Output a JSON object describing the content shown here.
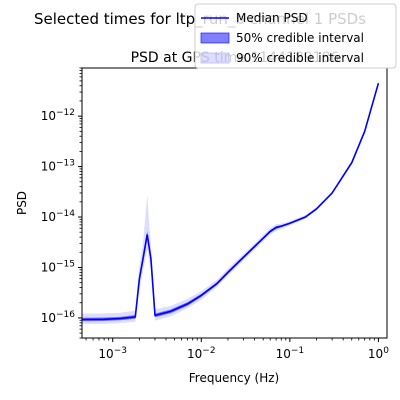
{
  "figure": {
    "suptitle": "Selected times for ltp_run_b channel 1 PSDs"
  },
  "chart_data": {
    "type": "line",
    "title": "PSD at GPS time 1144189186",
    "xlabel": "Frequency (Hz)",
    "ylabel": "PSD",
    "xscale": "log",
    "yscale": "log",
    "xlim": [
      0.00045,
      1.25
    ],
    "ylim": [
      4e-17,
      9e-12
    ],
    "xticks": [
      {
        "value": 0.001,
        "base": "10",
        "exp": "−3"
      },
      {
        "value": 0.01,
        "base": "10",
        "exp": "−2"
      },
      {
        "value": 0.1,
        "base": "10",
        "exp": "−1"
      },
      {
        "value": 1,
        "base": "10",
        "exp": "0"
      }
    ],
    "yticks": [
      {
        "value": 1e-16,
        "base": "10",
        "exp": "−16"
      },
      {
        "value": 1e-15,
        "base": "10",
        "exp": "−15"
      },
      {
        "value": 1e-14,
        "base": "10",
        "exp": "−14"
      },
      {
        "value": 1e-13,
        "base": "10",
        "exp": "−13"
      },
      {
        "value": 1e-12,
        "base": "10",
        "exp": "−12"
      }
    ],
    "legend": {
      "placement": "top-right",
      "entries": [
        "Median PSD",
        "50% credible interval",
        "90% credible interval"
      ]
    },
    "colors": {
      "median": "#0000ff",
      "ci50": "#0000ff",
      "ci90": "#b3b3ff"
    },
    "series": [
      {
        "name": "Median PSD",
        "x": [
          0.00045,
          0.0008,
          0.0012,
          0.0018,
          0.002,
          0.0022,
          0.00245,
          0.0027,
          0.003,
          0.0045,
          0.007,
          0.01,
          0.015,
          0.02,
          0.03,
          0.04,
          0.05,
          0.06,
          0.07,
          0.08,
          0.1,
          0.15,
          0.2,
          0.3,
          0.5,
          0.7,
          1.0
        ],
        "y": [
          9.3e-17,
          9.4e-17,
          9.7e-17,
          1.05e-16,
          6e-16,
          1.5e-15,
          4.5e-15,
          1.5e-15,
          1.12e-16,
          1.35e-16,
          1.9e-16,
          2.8e-16,
          4.8e-16,
          8e-16,
          1.6e-15,
          2.6e-15,
          3.8e-15,
          5.2e-15,
          6.2e-15,
          6.6e-15,
          7.5e-15,
          1e-14,
          1.45e-14,
          3e-14,
          1.2e-13,
          5e-13,
          4.5e-12
        ]
      },
      {
        "name": "50% credible interval",
        "x": [
          0.00045,
          0.0008,
          0.0012,
          0.0018,
          0.002,
          0.0022,
          0.00245,
          0.0027,
          0.003,
          0.0045,
          0.007,
          0.01,
          0.015,
          0.02,
          0.03,
          0.04,
          0.05,
          0.06,
          0.07,
          0.08,
          0.1,
          0.15,
          0.2,
          0.3,
          0.5,
          0.7,
          1.0
        ],
        "lower": [
          8.6e-17,
          8.7e-17,
          9e-17,
          9.6e-17,
          5.2e-16,
          1.2e-15,
          3.6e-15,
          1.3e-15,
          1.03e-16,
          1.24e-16,
          1.75e-16,
          2.6e-16,
          4.5e-16,
          7.5e-16,
          1.5e-15,
          2.45e-15,
          3.6e-15,
          4.9e-15,
          5.8e-15,
          6.3e-15,
          7.2e-15,
          9.6e-15,
          1.4e-14,
          2.9e-14,
          1.15e-13,
          4.8e-13,
          4.3e-12
        ],
        "upper": [
          1.01e-16,
          1.02e-16,
          1.05e-16,
          1.14e-16,
          7e-16,
          1.8e-15,
          5.3e-15,
          1.75e-15,
          1.22e-16,
          1.47e-16,
          2.06e-16,
          3e-16,
          5.1e-16,
          8.5e-16,
          1.7e-15,
          2.75e-15,
          4e-15,
          5.5e-15,
          6.6e-15,
          6.9e-15,
          7.8e-15,
          1.04e-14,
          1.5e-14,
          3.1e-14,
          1.25e-13,
          5.2e-13,
          4.7e-12
        ]
      },
      {
        "name": "90% credible interval",
        "x": [
          0.00045,
          0.0008,
          0.0012,
          0.0018,
          0.002,
          0.0022,
          0.00245,
          0.0027,
          0.003,
          0.0045,
          0.007,
          0.01,
          0.015,
          0.02,
          0.03,
          0.04,
          0.05,
          0.06,
          0.07,
          0.08,
          0.1,
          0.15,
          0.2,
          0.3,
          0.5,
          0.7,
          1.0
        ],
        "lower": [
          7.5e-17,
          7.6e-17,
          7.9e-17,
          8.4e-17,
          3.6e-16,
          8.5e-16,
          2.3e-15,
          9e-16,
          8.8e-17,
          1.08e-16,
          1.55e-16,
          2.3e-16,
          4.1e-16,
          6.9e-16,
          1.38e-15,
          2.25e-15,
          3.3e-15,
          4.5e-15,
          5.3e-15,
          5.8e-15,
          6.8e-15,
          9.2e-15,
          1.34e-14,
          2.8e-14,
          1.1e-13,
          4.6e-13,
          4.1e-12
        ],
        "upper": [
          1.22e-16,
          1.23e-16,
          1.26e-16,
          1.4e-16,
          1.05e-15,
          3e-15,
          2.7e-14,
          2.8e-15,
          1.48e-16,
          1.72e-16,
          2.4e-16,
          3.4e-16,
          5.7e-16,
          9.4e-16,
          1.86e-15,
          3e-15,
          4.4e-15,
          6e-15,
          7.2e-15,
          7.4e-15,
          8.3e-15,
          1.09e-14,
          1.57e-14,
          3.25e-14,
          1.3e-13,
          5.4e-13,
          4.9e-12
        ]
      }
    ]
  }
}
